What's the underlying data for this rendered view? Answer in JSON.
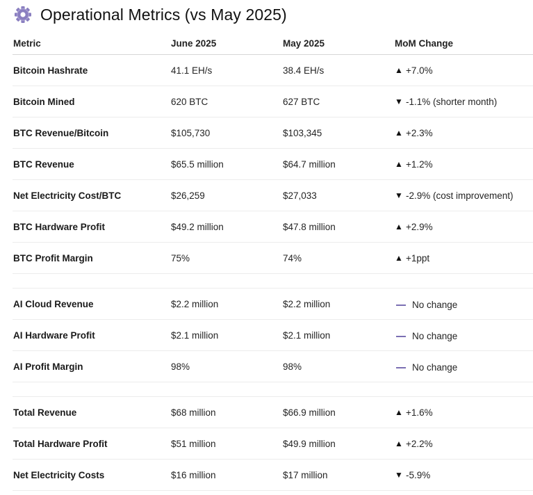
{
  "title": "Operational Metrics (vs May 2025)",
  "columns": {
    "metric": "Metric",
    "june": "June 2025",
    "may": "May 2025",
    "change": "MoM Change"
  },
  "rows": [
    {
      "metric": "Bitcoin Hashrate",
      "june": "41.1 EH/s",
      "may": "38.4 EH/s",
      "direction": "up",
      "arrow": "▲",
      "change": "+7.0%"
    },
    {
      "metric": "Bitcoin Mined",
      "june": "620 BTC",
      "may": "627 BTC",
      "direction": "down",
      "arrow": "▼",
      "change": "-1.1% (shorter month)"
    },
    {
      "metric": "BTC Revenue/Bitcoin",
      "june": "$105,730",
      "may": "$103,345",
      "direction": "up",
      "arrow": "▲",
      "change": "+2.3%"
    },
    {
      "metric": "BTC Revenue",
      "june": "$65.5 million",
      "may": "$64.7 million",
      "direction": "up",
      "arrow": "▲",
      "change": "+1.2%"
    },
    {
      "metric": "Net Electricity Cost/BTC",
      "june": "$26,259",
      "may": "$27,033",
      "direction": "down",
      "arrow": "▼",
      "change": "-2.9% (cost improvement)"
    },
    {
      "metric": "BTC Hardware Profit",
      "june": "$49.2 million",
      "may": "$47.8 million",
      "direction": "up",
      "arrow": "▲",
      "change": "+2.9%"
    },
    {
      "metric": "BTC Profit Margin",
      "june": "75%",
      "may": "74%",
      "direction": "up",
      "arrow": "▲",
      "change": "+1ppt"
    },
    {
      "spacer": true
    },
    {
      "metric": "AI Cloud Revenue",
      "june": "$2.2 million",
      "may": "$2.2 million",
      "direction": "flat",
      "arrow": "",
      "change": "No change"
    },
    {
      "metric": "AI Hardware Profit",
      "june": "$2.1 million",
      "may": "$2.1 million",
      "direction": "flat",
      "arrow": "",
      "change": "No change"
    },
    {
      "metric": "AI Profit Margin",
      "june": "98%",
      "may": "98%",
      "direction": "flat",
      "arrow": "",
      "change": "No change"
    },
    {
      "spacer": true
    },
    {
      "metric": "Total Revenue",
      "june": "$68 million",
      "may": "$66.9 million",
      "direction": "up",
      "arrow": "▲",
      "change": "+1.6%"
    },
    {
      "metric": "Total Hardware Profit",
      "june": "$51 million",
      "may": "$49.9 million",
      "direction": "up",
      "arrow": "▲",
      "change": "+2.2%"
    },
    {
      "metric": "Net Electricity Costs",
      "june": "$16 million",
      "may": "$17 million",
      "direction": "down",
      "arrow": "▼",
      "change": "-5.9%"
    }
  ],
  "icons": {
    "title_icon": "gear-icon",
    "flat_icon": "dash-icon"
  },
  "colors": {
    "gear": "#8a7fc0",
    "flat_dash": "#7b6fb3"
  }
}
